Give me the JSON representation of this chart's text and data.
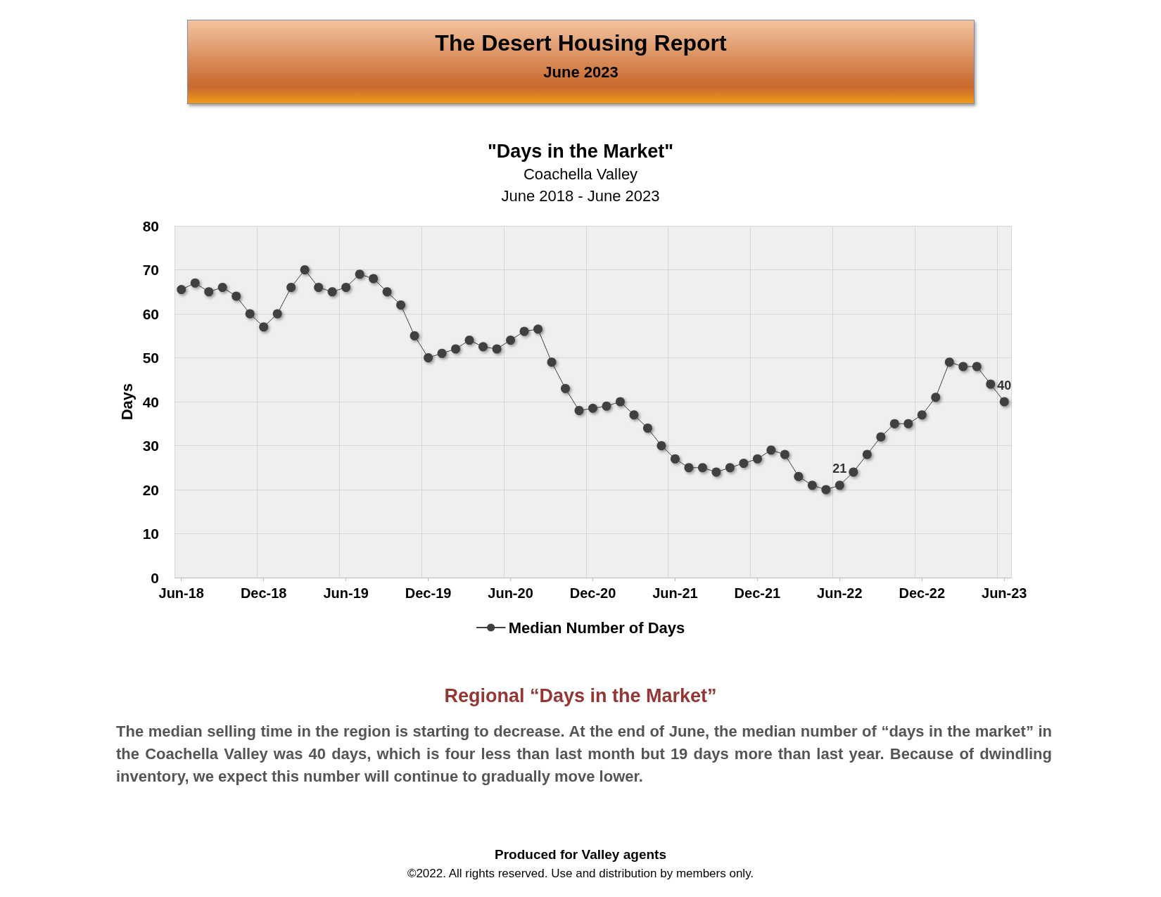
{
  "chart_data": {
    "type": "line",
    "title": "\"Days in the Market\"",
    "subtitle": "Coachella Valley\nJune 2018 - June 2023",
    "ylabel": "Days",
    "categories": [
      "Jun-18",
      null,
      null,
      null,
      null,
      null,
      "Dec-18",
      null,
      null,
      null,
      null,
      null,
      "Jun-19",
      null,
      null,
      null,
      null,
      null,
      "Dec-19",
      null,
      null,
      null,
      null,
      null,
      "Jun-20",
      null,
      null,
      null,
      null,
      null,
      "Dec-20",
      null,
      null,
      null,
      null,
      null,
      "Jun-21",
      null,
      null,
      null,
      null,
      null,
      "Dec-21",
      null,
      null,
      null,
      null,
      null,
      "Jun-22",
      null,
      null,
      null,
      null,
      null,
      "Dec-22",
      null,
      null,
      null,
      null,
      null,
      "Jun-23"
    ],
    "series": [
      {
        "name": "Median Number of Days",
        "color": "#404040",
        "values": [
          65.5,
          67,
          65,
          66,
          64,
          60,
          57,
          60,
          66,
          70,
          66,
          65,
          66,
          69,
          68,
          65,
          62,
          55,
          50,
          51,
          52,
          54,
          52.5,
          52,
          54,
          56,
          56.5,
          49,
          43,
          38,
          38.5,
          39,
          40,
          37,
          34,
          30,
          27,
          25,
          25,
          24,
          25,
          26,
          27,
          29,
          28,
          23,
          21,
          20,
          21,
          24,
          28,
          32,
          35,
          35,
          37,
          41,
          49,
          48,
          48,
          44,
          40
        ],
        "value_labels": [
          null,
          null,
          null,
          null,
          null,
          null,
          null,
          null,
          null,
          null,
          null,
          null,
          null,
          null,
          null,
          null,
          null,
          null,
          null,
          null,
          null,
          null,
          null,
          null,
          null,
          null,
          null,
          null,
          null,
          null,
          null,
          null,
          null,
          null,
          null,
          null,
          null,
          null,
          null,
          null,
          null,
          null,
          null,
          null,
          null,
          null,
          null,
          null,
          "21",
          null,
          null,
          null,
          null,
          null,
          null,
          null,
          null,
          null,
          null,
          null,
          "40"
        ]
      }
    ],
    "ylim": [
      0,
      80
    ],
    "yticks": [
      0,
      10,
      20,
      30,
      40,
      50,
      60,
      70,
      80
    ],
    "grid": true,
    "legend": "bottom",
    "marker": "circle",
    "line_style": "solid",
    "annotations": [
      "The Desert Housing Report",
      "June 2023",
      "Regional “Days in the Market”",
      "The median selling time in the region is starting to decrease. At the end of June, the median number of “days in the market” in the Coachella Valley was 40 days, which is four less than last month but 19 days more than last year. Because of dwindling inventory, we expect this number will continue to gradually move lower.",
      "Produced for Valley agents",
      "©2022. All rights reserved.  Use and distribution by members only."
    ]
  }
}
